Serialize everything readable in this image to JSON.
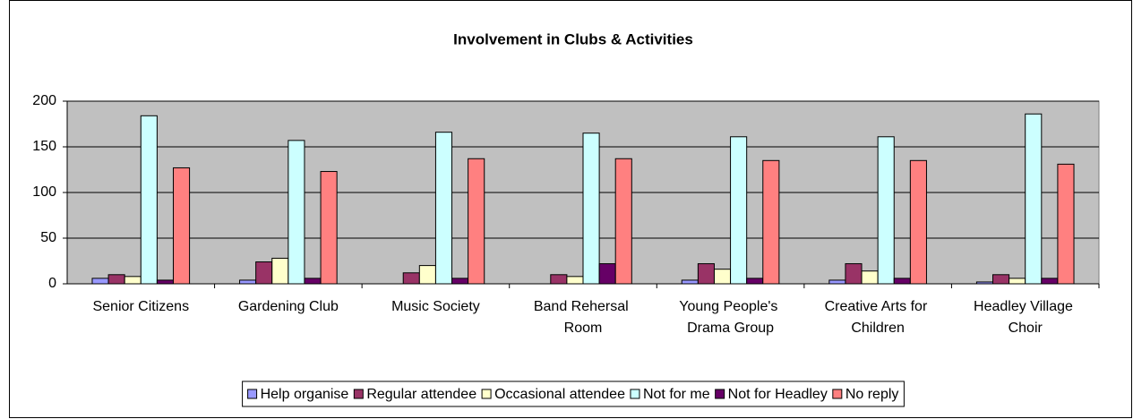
{
  "chart_data": {
    "type": "bar",
    "title": "Involvement in Clubs & Activities",
    "categories": [
      "Senior Citizens",
      "Gardening Club",
      "Music Society",
      "Band Rehersal Room",
      "Young People's Drama Group",
      "Creative Arts for Children",
      "Headley Village Choir"
    ],
    "series": [
      {
        "name": "Help organise",
        "color": "#9999ff",
        "values": [
          6,
          4,
          0,
          0,
          4,
          4,
          2
        ]
      },
      {
        "name": "Regular attendee",
        "color": "#993366",
        "values": [
          10,
          24,
          12,
          10,
          22,
          22,
          10
        ]
      },
      {
        "name": "Occasional attendee",
        "color": "#ffffcc",
        "values": [
          8,
          28,
          20,
          8,
          16,
          14,
          6
        ]
      },
      {
        "name": "Not for me",
        "color": "#ccffff",
        "values": [
          184,
          157,
          166,
          165,
          161,
          161,
          186
        ]
      },
      {
        "name": "Not for Headley",
        "color": "#660066",
        "values": [
          4,
          6,
          6,
          22,
          6,
          6,
          6
        ]
      },
      {
        "name": "No reply",
        "color": "#ff8080",
        "values": [
          127,
          123,
          137,
          137,
          135,
          135,
          131
        ]
      }
    ],
    "ylim": [
      0,
      200
    ],
    "yticks": [
      0,
      50,
      100,
      150,
      200
    ],
    "grid": true,
    "legend": "bottom"
  }
}
